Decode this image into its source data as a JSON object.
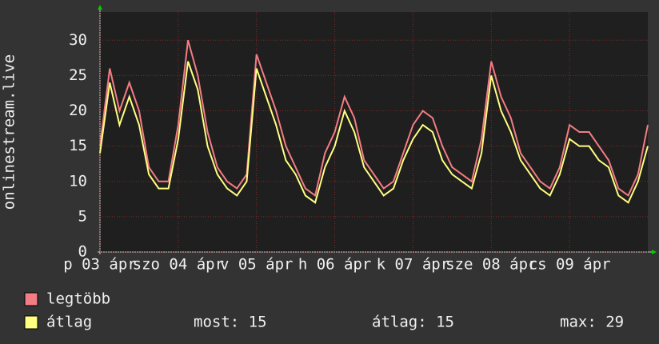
{
  "chart_data": {
    "type": "line",
    "ylabel": "onlinestream.live",
    "x": [
      0,
      0.125,
      0.25,
      0.375,
      0.5,
      0.625,
      0.75,
      0.875,
      1,
      1.125,
      1.25,
      1.375,
      1.5,
      1.625,
      1.75,
      1.875,
      2,
      2.125,
      2.25,
      2.375,
      2.5,
      2.625,
      2.75,
      2.875,
      3,
      3.125,
      3.25,
      3.375,
      3.5,
      3.625,
      3.75,
      3.875,
      4,
      4.125,
      4.25,
      4.375,
      4.5,
      4.625,
      4.75,
      4.875,
      5,
      5.125,
      5.25,
      5.375,
      5.5,
      5.625,
      5.75,
      5.875,
      6,
      6.125,
      6.25,
      6.375,
      6.5,
      6.625,
      6.75,
      6.875,
      7
    ],
    "series": [
      {
        "name": "legtöbb",
        "color": "#f47c84",
        "values": [
          15,
          26,
          20,
          24,
          20,
          12,
          10,
          10,
          18,
          30,
          25,
          17,
          12,
          10,
          9,
          11,
          28,
          24,
          20,
          15,
          12,
          9,
          8,
          14,
          17,
          22,
          19,
          13,
          11,
          9,
          10,
          14,
          18,
          20,
          19,
          15,
          12,
          11,
          10,
          16,
          27,
          22,
          19,
          14,
          12,
          10,
          9,
          12,
          18,
          17,
          17,
          15,
          13,
          9,
          8,
          11,
          18
        ]
      },
      {
        "name": "átlag",
        "color": "#ffff80",
        "values": [
          14,
          24,
          18,
          22,
          18,
          11,
          9,
          9,
          16,
          27,
          23,
          15,
          11,
          9,
          8,
          10,
          26,
          22,
          18,
          13,
          11,
          8,
          7,
          12,
          15,
          20,
          17,
          12,
          10,
          8,
          9,
          13,
          16,
          18,
          17,
          13,
          11,
          10,
          9,
          14,
          25,
          20,
          17,
          13,
          11,
          9,
          8,
          11,
          16,
          15,
          15,
          13,
          12,
          8,
          7,
          10,
          15
        ]
      }
    ],
    "xlim": [
      0,
      7
    ],
    "xticks": [
      {
        "value": 0,
        "label": "p 03 ápr"
      },
      {
        "value": 1,
        "label": "szo 04 ápr"
      },
      {
        "value": 2,
        "label": "v 05 ápr"
      },
      {
        "value": 3,
        "label": "h 06 ápr"
      },
      {
        "value": 4,
        "label": "k 07 ápr"
      },
      {
        "value": 5,
        "label": "sze 08 ápr"
      },
      {
        "value": 6,
        "label": "cs 09 ápr"
      }
    ],
    "ylim": [
      0,
      34
    ],
    "yticks": [
      0,
      5,
      10,
      15,
      20,
      25,
      30
    ],
    "grid": true,
    "stats": [
      "most: 15",
      "átlag: 15",
      "max: 29"
    ]
  }
}
